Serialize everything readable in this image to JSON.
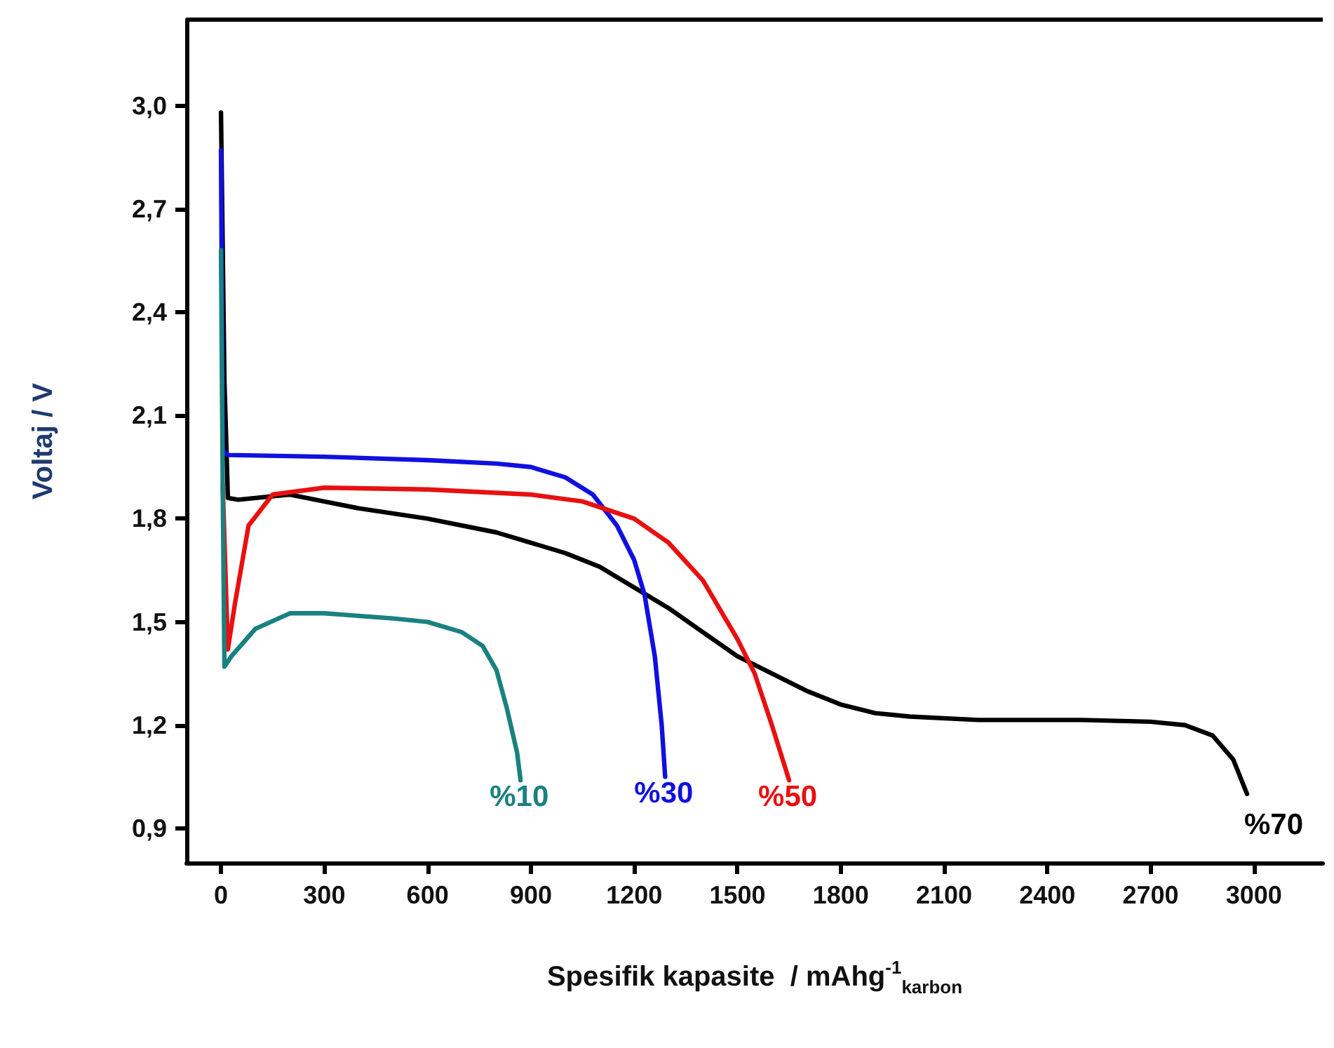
{
  "chart_data": {
    "type": "line",
    "xlabel": "Spesifik kapasite  / mAhg$^{-1}$$_{karbon}$",
    "ylabel": "Voltaj / V",
    "xlim": [
      -100,
      3200
    ],
    "ylim": [
      0.8,
      3.25
    ],
    "xticks": [
      0,
      300,
      600,
      900,
      1200,
      1500,
      1800,
      2100,
      2400,
      2700,
      3000
    ],
    "yticks": [
      {
        "value": 0.9,
        "label": "0,9"
      },
      {
        "value": 1.2,
        "label": "1,2"
      },
      {
        "value": 1.5,
        "label": "1,5"
      },
      {
        "value": 1.8,
        "label": "1,8"
      },
      {
        "value": 2.1,
        "label": "2,1"
      },
      {
        "value": 2.4,
        "label": "2,4"
      },
      {
        "value": 2.7,
        "label": "2,7"
      },
      {
        "value": 3.0,
        "label": "3,0"
      }
    ],
    "grid": false,
    "legend": false,
    "marker": "none",
    "line_style": "solid",
    "series": [
      {
        "name": "%70",
        "color": "#000000",
        "x": [
          0,
          10,
          20,
          50,
          200,
          300,
          400,
          600,
          800,
          1000,
          1100,
          1200,
          1300,
          1400,
          1500,
          1600,
          1700,
          1800,
          1900,
          2000,
          2200,
          2500,
          2700,
          2800,
          2880,
          2940,
          2980
        ],
        "values": [
          2.98,
          2.2,
          1.86,
          1.855,
          1.87,
          1.85,
          1.83,
          1.8,
          1.76,
          1.7,
          1.66,
          1.6,
          1.54,
          1.47,
          1.4,
          1.35,
          1.3,
          1.26,
          1.235,
          1.225,
          1.215,
          1.215,
          1.21,
          1.2,
          1.17,
          1.1,
          1.0
        ]
      },
      {
        "name": "%30",
        "color": "#1010e0",
        "x": [
          0,
          5,
          20,
          300,
          600,
          800,
          900,
          1000,
          1080,
          1150,
          1200,
          1230,
          1260,
          1280,
          1290
        ],
        "values": [
          2.87,
          2.0,
          1.985,
          1.98,
          1.97,
          1.96,
          1.95,
          1.92,
          1.87,
          1.78,
          1.68,
          1.58,
          1.4,
          1.2,
          1.05
        ]
      },
      {
        "name": "%50",
        "color": "#e81010",
        "x": [
          5,
          20,
          40,
          80,
          150,
          300,
          600,
          900,
          1050,
          1200,
          1300,
          1400,
          1500,
          1550,
          1600,
          1650
        ],
        "values": [
          1.9,
          1.42,
          1.55,
          1.78,
          1.87,
          1.89,
          1.885,
          1.87,
          1.85,
          1.8,
          1.73,
          1.62,
          1.45,
          1.35,
          1.2,
          1.04
        ]
      },
      {
        "name": "%10",
        "color": "#1a8080",
        "x": [
          0,
          5,
          10,
          30,
          100,
          200,
          300,
          500,
          600,
          700,
          760,
          800,
          830,
          860,
          870
        ],
        "values": [
          2.58,
          1.9,
          1.37,
          1.4,
          1.48,
          1.525,
          1.525,
          1.51,
          1.5,
          1.47,
          1.43,
          1.36,
          1.25,
          1.12,
          1.04
        ]
      }
    ]
  }
}
